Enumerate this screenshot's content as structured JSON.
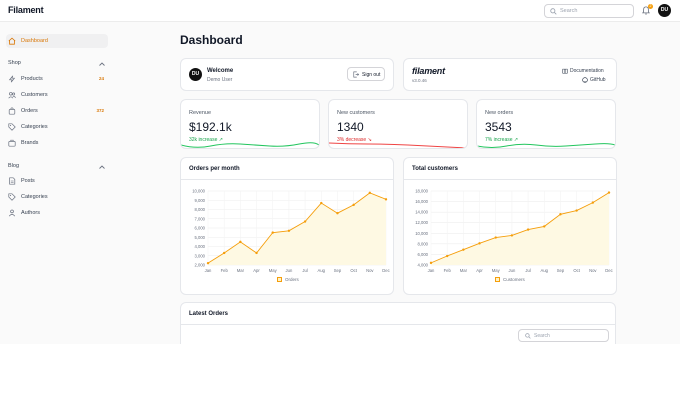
{
  "brand": "Filament",
  "topbar": {
    "search_placeholder": "Search",
    "notification_count": "2",
    "avatar_initials": "DU",
    "icons": [
      "search-icon",
      "bell-icon"
    ]
  },
  "sidebar": {
    "items": [
      {
        "label": "Dashboard",
        "icon": "home-icon",
        "active": true
      }
    ],
    "groups": [
      {
        "label": "Shop",
        "items": [
          {
            "label": "Products",
            "icon": "bolt-icon",
            "badge": "24"
          },
          {
            "label": "Customers",
            "icon": "users-icon",
            "badge": ""
          },
          {
            "label": "Orders",
            "icon": "shopping-bag-icon",
            "badge": "372"
          },
          {
            "label": "Categories",
            "icon": "tag-icon",
            "badge": ""
          },
          {
            "label": "Brands",
            "icon": "briefcase-icon",
            "badge": ""
          }
        ]
      },
      {
        "label": "Blog",
        "items": [
          {
            "label": "Posts",
            "icon": "document-icon"
          },
          {
            "label": "Categories",
            "icon": "tag-icon"
          },
          {
            "label": "Authors",
            "icon": "user-group-icon"
          }
        ]
      }
    ]
  },
  "page": {
    "title": "Dashboard"
  },
  "welcome": {
    "avatar_initials": "DU",
    "title": "Welcome",
    "user": "Demo User",
    "signout_label": "Sign out"
  },
  "filament_info": {
    "logo": "filament",
    "version": "v3.0.46",
    "documentation_label": "Documentation",
    "github_label": "GitHub"
  },
  "stats": [
    {
      "label": "Revenue",
      "value": "$192.1k",
      "description": "32k increase",
      "trend": "up",
      "color": "#22c55e"
    },
    {
      "label": "New customers",
      "value": "1340",
      "description": "3% decrease",
      "trend": "down",
      "color": "#ef4444"
    },
    {
      "label": "New orders",
      "value": "3543",
      "description": "7% increase",
      "trend": "up",
      "color": "#22c55e"
    }
  ],
  "chart_data": [
    {
      "type": "area",
      "title": "Orders per month",
      "categories": [
        "Jan",
        "Feb",
        "Mar",
        "Apr",
        "May",
        "Jun",
        "Jul",
        "Aug",
        "Sep",
        "Oct",
        "Nov",
        "Dec"
      ],
      "yticks": [
        2000,
        3000,
        4000,
        5000,
        6000,
        7000,
        8000,
        9000,
        10000
      ],
      "ytick_labels": [
        "2,000",
        "3,000",
        "4,000",
        "5,000",
        "6,000",
        "7,000",
        "8,000",
        "9,000",
        "10,000"
      ],
      "ylim": [
        2000,
        10000
      ],
      "series": [
        {
          "name": "Orders",
          "values": [
            2200,
            3300,
            4500,
            3300,
            5500,
            5700,
            6700,
            8700,
            7600,
            8500,
            9800,
            9100
          ],
          "color": "#f59e0b",
          "fill": "#fef9e3"
        }
      ],
      "grid": true,
      "legend": "bottom"
    },
    {
      "type": "area",
      "title": "Total customers",
      "categories": [
        "Jan",
        "Feb",
        "Mar",
        "Apr",
        "May",
        "Jun",
        "Jul",
        "Aug",
        "Sep",
        "Oct",
        "Nov",
        "Dec"
      ],
      "yticks": [
        4000,
        6000,
        8000,
        10000,
        12000,
        14000,
        16000,
        18000
      ],
      "ytick_labels": [
        "4,000",
        "6,000",
        "8,000",
        "10,000",
        "12,000",
        "14,000",
        "16,000",
        "18,000"
      ],
      "ylim": [
        4000,
        18000
      ],
      "series": [
        {
          "name": "Customers",
          "values": [
            4400,
            5700,
            6900,
            8100,
            9200,
            9600,
            10700,
            11300,
            13600,
            14300,
            15800,
            17700
          ],
          "color": "#f59e0b",
          "fill": "#fef9e3"
        }
      ],
      "grid": true,
      "legend": "bottom"
    }
  ],
  "latest_orders": {
    "title": "Latest Orders",
    "search_placeholder": "Search"
  }
}
